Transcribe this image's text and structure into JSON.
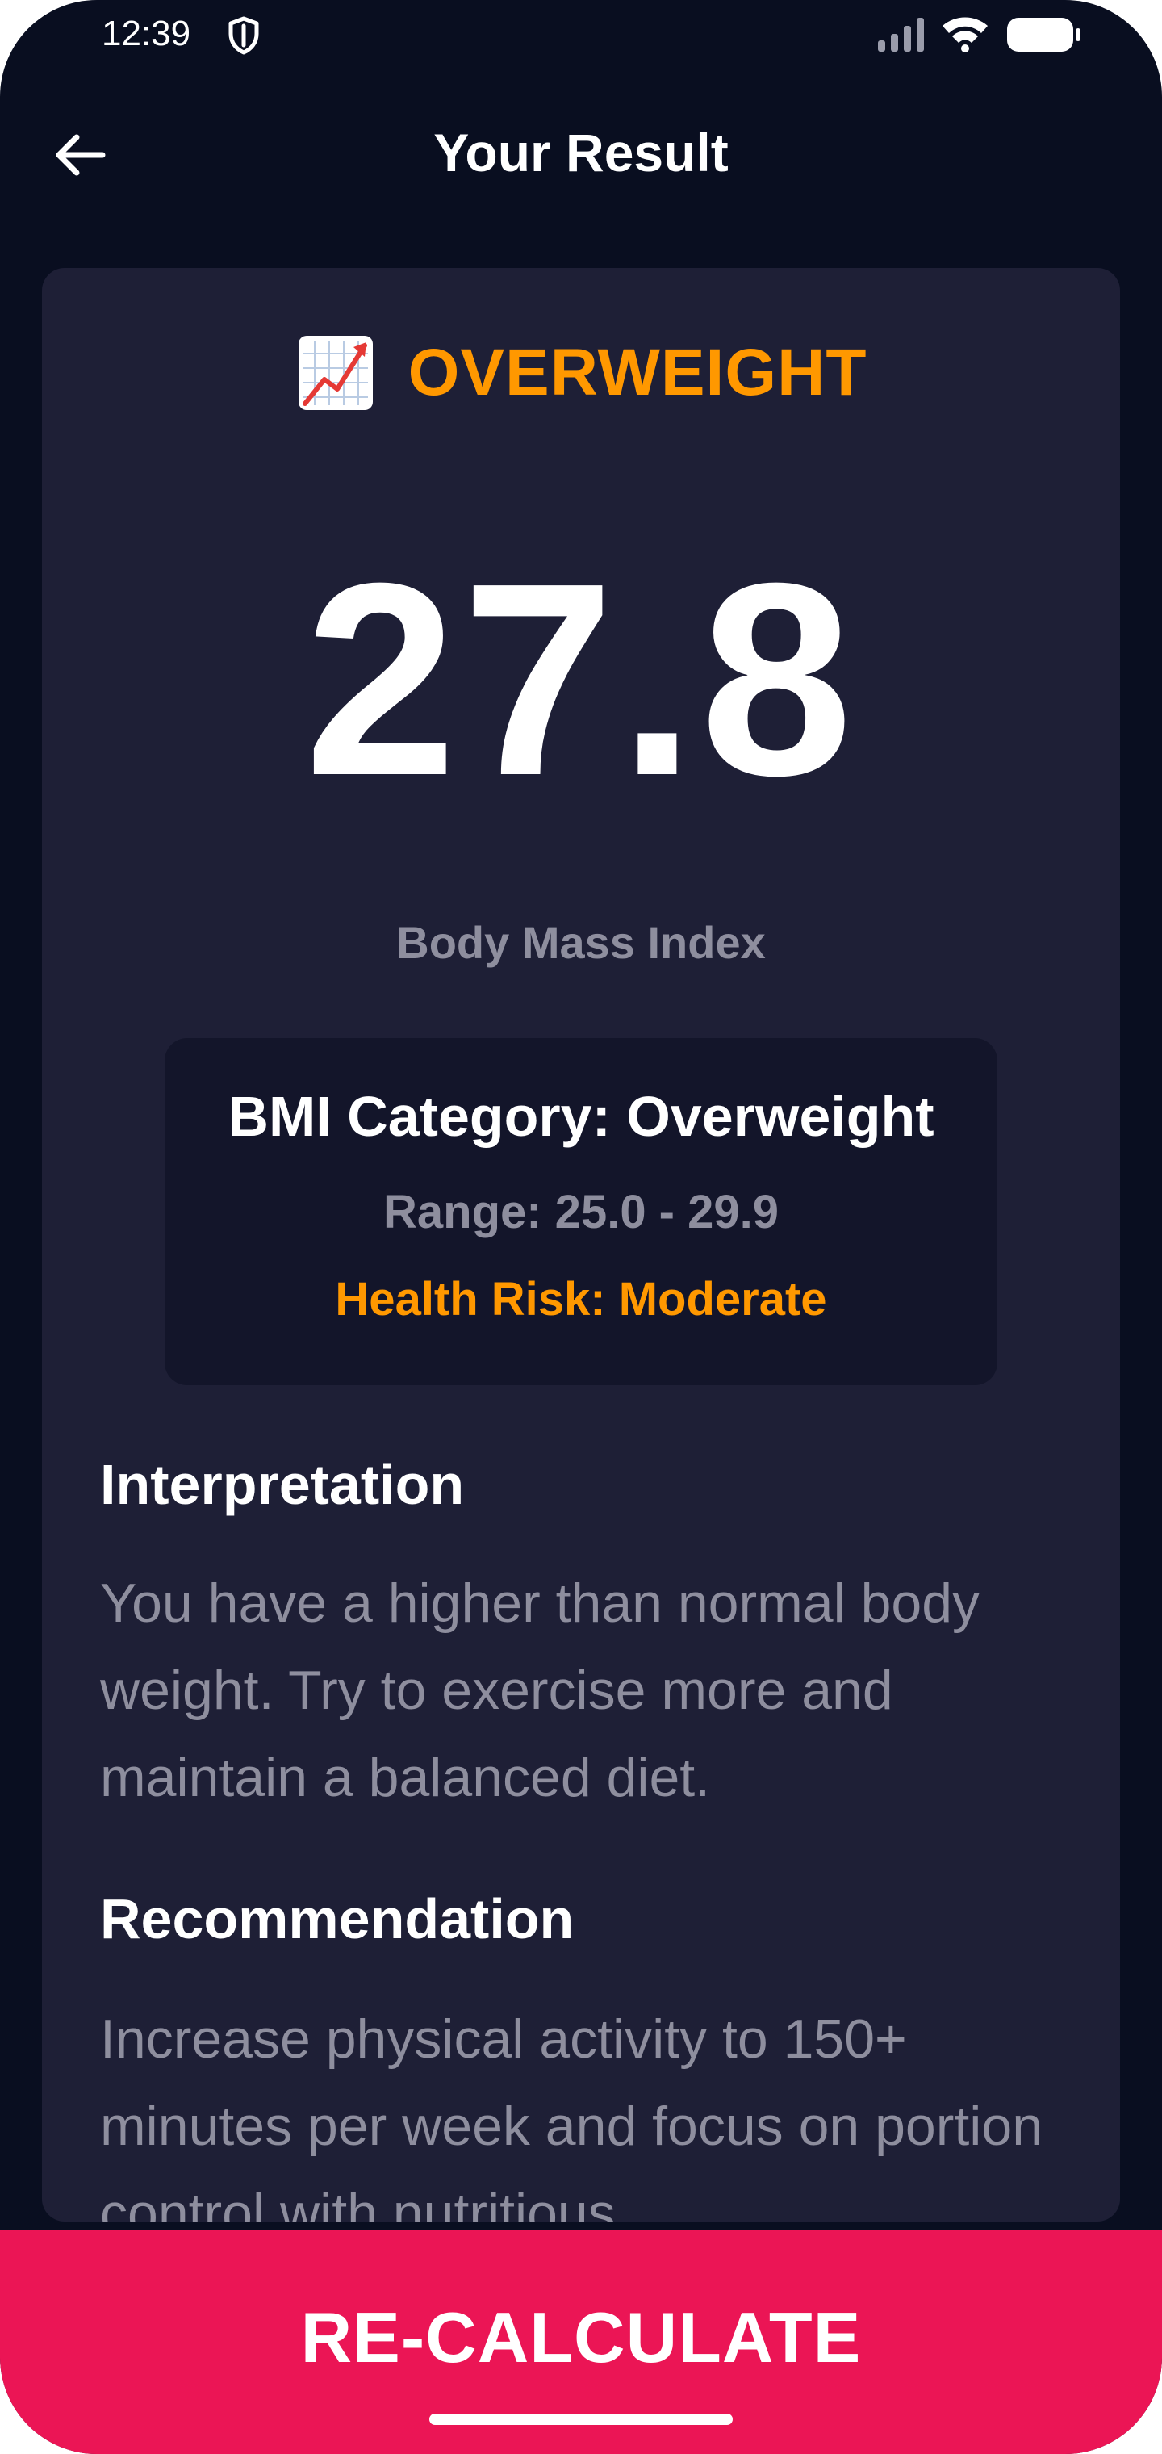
{
  "status_bar": {
    "time": "12:39",
    "icons": [
      "shield-icon",
      "signal-icon",
      "wifi-icon",
      "battery-icon"
    ]
  },
  "header": {
    "back_icon": "arrow-left-icon",
    "title": "Your Result"
  },
  "result": {
    "status_icon": "chart-increasing-icon",
    "status": "OVERWEIGHT",
    "bmi_value": "27.8",
    "bmi_label": "Body Mass Index",
    "category": {
      "title": "BMI Category: Overweight",
      "range": "Range: 25.0 - 29.9",
      "risk": "Health Risk: Moderate"
    },
    "interpretation": {
      "heading": "Interpretation",
      "text": "You have a higher than normal body weight. Try to exercise more and maintain a balanced diet."
    },
    "recommendation": {
      "heading": "Recommendation",
      "text": "Increase physical activity to 150+ minutes per week and focus on portion control with nutritious"
    }
  },
  "action": {
    "recalculate_label": "RE-CALCULATE"
  },
  "colors": {
    "background": "#090e20",
    "card": "#1e1f36",
    "category_box": "#13152a",
    "accent_status": "#ff9800",
    "button": "#eb1555",
    "muted_text": "#8e8e9e"
  }
}
